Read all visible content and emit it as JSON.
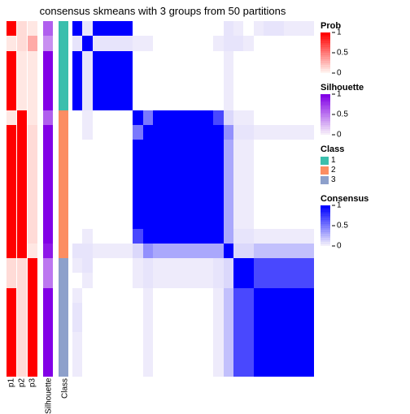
{
  "title": "consensus skmeans with 3 groups from 50 partitions",
  "n": 24,
  "annotation_col_width": 12,
  "gap_width": 6,
  "colors": {
    "white": "#ffffff",
    "prob_low": "#fff3ef",
    "prob_mid": "#fca080",
    "prob_high": "#ff0000",
    "sil_low": "#f6eef9",
    "sil_mid": "#b97de0",
    "sil_high": "#8200e6",
    "class1": "#3bbfad",
    "class2": "#fc8d62",
    "class3": "#8da0cb",
    "cons_low": "#f3f0fb",
    "cons_mid": "#7b6bd8",
    "cons_high": "#0000ff"
  },
  "groups": [
    {
      "count": 6,
      "class": 1
    },
    {
      "count": 10,
      "class": 2
    },
    {
      "count": 8,
      "class": 3
    }
  ],
  "p1_values": [
    1,
    0.05,
    1,
    1,
    1,
    1,
    0.05,
    1,
    1,
    1,
    1,
    1,
    1,
    1,
    1,
    1,
    0.1,
    0.1,
    1,
    1,
    1,
    1,
    1,
    1
  ],
  "p2_values": [
    0.1,
    0.1,
    0.05,
    0.05,
    0.05,
    0.05,
    1,
    1,
    1,
    1,
    1,
    1,
    1,
    1,
    1,
    1,
    0.1,
    0.1,
    0.1,
    0.1,
    0.1,
    0.1,
    0.1,
    0.1
  ],
  "p3_values": [
    0.05,
    0.3,
    0.05,
    0.05,
    0.05,
    0.05,
    0.05,
    0.1,
    0.1,
    0.1,
    0.1,
    0.1,
    0.1,
    0.1,
    0.1,
    0.05,
    1,
    1,
    1,
    1,
    1,
    1,
    1,
    1
  ],
  "sil_values": [
    0.6,
    0.4,
    1,
    1,
    1,
    1,
    0.6,
    1,
    1,
    1,
    1,
    1,
    1,
    1,
    1,
    0.9,
    0.5,
    0.5,
    1,
    1,
    1,
    1,
    1,
    1
  ],
  "heatmap": [
    [
      1,
      0.05,
      1,
      1,
      1,
      1,
      0,
      0,
      0,
      0,
      0,
      0,
      0,
      0,
      0,
      0.05,
      0.02,
      0,
      0.02,
      0.05,
      0.05,
      0.02,
      0.02,
      0.02
    ],
    [
      0.05,
      1,
      0.05,
      0.05,
      0.05,
      0.05,
      0.02,
      0.02,
      0,
      0,
      0,
      0,
      0,
      0,
      0.02,
      0.05,
      0.05,
      0.02,
      0,
      0,
      0,
      0,
      0,
      0
    ],
    [
      1,
      0.05,
      1,
      1,
      1,
      1,
      0,
      0,
      0,
      0,
      0,
      0,
      0,
      0,
      0,
      0.02,
      0,
      0,
      0,
      0,
      0,
      0,
      0,
      0
    ],
    [
      1,
      0.05,
      1,
      1,
      1,
      1,
      0,
      0,
      0,
      0,
      0,
      0,
      0,
      0,
      0,
      0.02,
      0,
      0,
      0,
      0,
      0,
      0,
      0,
      0
    ],
    [
      1,
      0.05,
      1,
      1,
      1,
      1,
      0,
      0,
      0,
      0,
      0,
      0,
      0,
      0,
      0,
      0.02,
      0,
      0,
      0,
      0,
      0,
      0,
      0,
      0
    ],
    [
      1,
      0.05,
      1,
      1,
      1,
      1,
      0,
      0,
      0,
      0,
      0,
      0,
      0,
      0,
      0,
      0.02,
      0,
      0,
      0,
      0,
      0,
      0,
      0,
      0
    ],
    [
      0,
      0.02,
      0,
      0,
      0,
      0,
      1,
      0.5,
      1,
      1,
      1,
      1,
      1,
      1,
      0.7,
      0.1,
      0.02,
      0.02,
      0,
      0,
      0,
      0,
      0,
      0
    ],
    [
      0,
      0.02,
      0,
      0,
      0,
      0,
      0.5,
      1,
      1,
      1,
      1,
      1,
      1,
      1,
      1,
      0.4,
      0.05,
      0.05,
      0.02,
      0.02,
      0.02,
      0.02,
      0.02,
      0.02
    ],
    [
      0,
      0,
      0,
      0,
      0,
      0,
      1,
      1,
      1,
      1,
      1,
      1,
      1,
      1,
      1,
      0.3,
      0.02,
      0.02,
      0,
      0,
      0,
      0,
      0,
      0
    ],
    [
      0,
      0,
      0,
      0,
      0,
      0,
      1,
      1,
      1,
      1,
      1,
      1,
      1,
      1,
      1,
      0.3,
      0.02,
      0.02,
      0,
      0,
      0,
      0,
      0,
      0
    ],
    [
      0,
      0,
      0,
      0,
      0,
      0,
      1,
      1,
      1,
      1,
      1,
      1,
      1,
      1,
      1,
      0.3,
      0.02,
      0.02,
      0,
      0,
      0,
      0,
      0,
      0
    ],
    [
      0,
      0,
      0,
      0,
      0,
      0,
      1,
      1,
      1,
      1,
      1,
      1,
      1,
      1,
      1,
      0.3,
      0.02,
      0.02,
      0,
      0,
      0,
      0,
      0,
      0
    ],
    [
      0,
      0,
      0,
      0,
      0,
      0,
      1,
      1,
      1,
      1,
      1,
      1,
      1,
      1,
      1,
      0.3,
      0.02,
      0.02,
      0,
      0,
      0,
      0,
      0,
      0
    ],
    [
      0,
      0,
      0,
      0,
      0,
      0,
      1,
      1,
      1,
      1,
      1,
      1,
      1,
      1,
      1,
      0.3,
      0.02,
      0.02,
      0,
      0,
      0,
      0,
      0,
      0
    ],
    [
      0,
      0.02,
      0,
      0,
      0,
      0,
      0.7,
      1,
      1,
      1,
      1,
      1,
      1,
      1,
      1,
      0.3,
      0.05,
      0.05,
      0.02,
      0.02,
      0.02,
      0.02,
      0.02,
      0.02
    ],
    [
      0.05,
      0.05,
      0.02,
      0.02,
      0.02,
      0.02,
      0.1,
      0.4,
      0.3,
      0.3,
      0.3,
      0.3,
      0.3,
      0.3,
      0.3,
      1,
      0.1,
      0.1,
      0.2,
      0.2,
      0.2,
      0.2,
      0.2,
      0.2
    ],
    [
      0.02,
      0.05,
      0,
      0,
      0,
      0,
      0.02,
      0.05,
      0.02,
      0.02,
      0.02,
      0.02,
      0.02,
      0.02,
      0.05,
      0.1,
      1,
      1,
      0.7,
      0.7,
      0.7,
      0.7,
      0.7,
      0.7
    ],
    [
      0,
      0.02,
      0,
      0,
      0,
      0,
      0.02,
      0.05,
      0.02,
      0.02,
      0.02,
      0.02,
      0.02,
      0.02,
      0.05,
      0.1,
      1,
      1,
      0.7,
      0.7,
      0.7,
      0.7,
      0.7,
      0.7
    ],
    [
      0.02,
      0,
      0,
      0,
      0,
      0,
      0,
      0.02,
      0,
      0,
      0,
      0,
      0,
      0,
      0.02,
      0.2,
      0.7,
      0.7,
      1,
      1,
      1,
      1,
      1,
      1
    ],
    [
      0.05,
      0,
      0,
      0,
      0,
      0,
      0,
      0.02,
      0,
      0,
      0,
      0,
      0,
      0,
      0.02,
      0.2,
      0.7,
      0.7,
      1,
      1,
      1,
      1,
      1,
      1
    ],
    [
      0.05,
      0,
      0,
      0,
      0,
      0,
      0,
      0.02,
      0,
      0,
      0,
      0,
      0,
      0,
      0.02,
      0.2,
      0.7,
      0.7,
      1,
      1,
      1,
      1,
      1,
      1
    ],
    [
      0.02,
      0,
      0,
      0,
      0,
      0,
      0,
      0.02,
      0,
      0,
      0,
      0,
      0,
      0,
      0.02,
      0.2,
      0.7,
      0.7,
      1,
      1,
      1,
      1,
      1,
      1
    ],
    [
      0.02,
      0,
      0,
      0,
      0,
      0,
      0,
      0.02,
      0,
      0,
      0,
      0,
      0,
      0,
      0.02,
      0.2,
      0.7,
      0.7,
      1,
      1,
      1,
      1,
      1,
      1
    ],
    [
      0.02,
      0,
      0,
      0,
      0,
      0,
      0,
      0.02,
      0,
      0,
      0,
      0,
      0,
      0,
      0.02,
      0.2,
      0.7,
      0.7,
      1,
      1,
      1,
      1,
      1,
      1
    ]
  ],
  "annotation_labels": [
    "p1",
    "p2",
    "p3",
    "Silhouette",
    "Class"
  ],
  "legends": {
    "prob": {
      "title": "Prob",
      "ticks": [
        1,
        0.5,
        0
      ]
    },
    "sil": {
      "title": "Silhouette",
      "ticks": [
        1,
        0.5,
        0
      ]
    },
    "class": {
      "title": "Class",
      "items": [
        {
          "label": "1",
          "key": "class1"
        },
        {
          "label": "2",
          "key": "class2"
        },
        {
          "label": "3",
          "key": "class3"
        }
      ]
    },
    "cons": {
      "title": "Consensus",
      "ticks": [
        1,
        0.5,
        0
      ]
    }
  }
}
